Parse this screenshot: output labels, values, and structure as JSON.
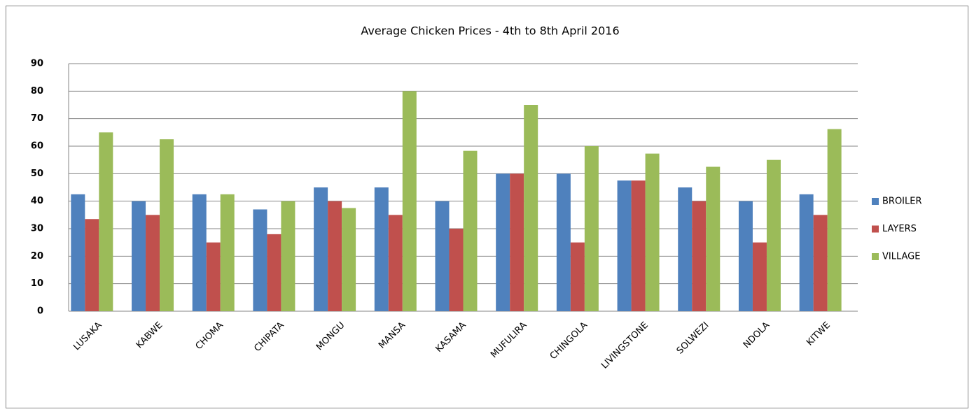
{
  "chart_data": {
    "type": "bar",
    "title": "Average Chicken Prices - 4th to 8th April 2016",
    "categories": [
      "LUSAKA",
      "KABWE",
      "CHOMA",
      "CHIPATA",
      "MONGU",
      "MANSA",
      "KASAMA",
      "MUFULIRA",
      "CHINGOLA",
      "LIVINGSTONE",
      "SOLWEZI",
      "NDOLA",
      "KITWE"
    ],
    "series": [
      {
        "name": "BROILER",
        "color": "#4f81bd",
        "values": [
          42.5,
          40,
          42.5,
          37,
          45,
          45,
          40,
          50,
          50,
          47.5,
          45,
          40,
          42.5
        ]
      },
      {
        "name": "LAYERS",
        "color": "#c0504d",
        "values": [
          33.5,
          35,
          25,
          28,
          40,
          35,
          30,
          50,
          25,
          47.5,
          40,
          25,
          35
        ]
      },
      {
        "name": "VILLAGE",
        "color": "#9bbb59",
        "values": [
          65,
          62.5,
          42.5,
          40,
          37.5,
          80,
          58.3,
          75,
          60,
          57.3,
          52.5,
          55,
          66.2
        ]
      }
    ],
    "ylim": [
      0,
      90
    ],
    "yticks": [
      0,
      10,
      20,
      30,
      40,
      50,
      60,
      70,
      80,
      90
    ],
    "grid": true,
    "legend": "right"
  }
}
